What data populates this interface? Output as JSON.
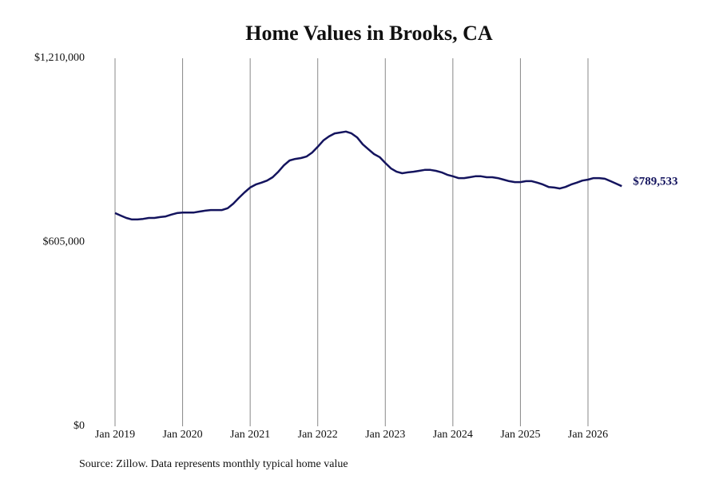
{
  "chart_data": {
    "type": "line",
    "title": "Home Values in Brooks, CA",
    "source": "Source: Zillow. Data represents monthly typical home value",
    "x": [
      "Jan 2019",
      "Feb 2019",
      "Mar 2019",
      "Apr 2019",
      "May 2019",
      "Jun 2019",
      "Jul 2019",
      "Aug 2019",
      "Sep 2019",
      "Oct 2019",
      "Nov 2019",
      "Dec 2019",
      "Jan 2020",
      "Feb 2020",
      "Mar 2020",
      "Apr 2020",
      "May 2020",
      "Jun 2020",
      "Jul 2020",
      "Aug 2020",
      "Sep 2020",
      "Oct 2020",
      "Nov 2020",
      "Dec 2020",
      "Jan 2021",
      "Feb 2021",
      "Mar 2021",
      "Apr 2021",
      "May 2021",
      "Jun 2021",
      "Jul 2021",
      "Aug 2021",
      "Sep 2021",
      "Oct 2021",
      "Nov 2021",
      "Dec 2021",
      "Jan 2022",
      "Feb 2022",
      "Mar 2022",
      "Apr 2022",
      "May 2022",
      "Jun 2022",
      "Jul 2022",
      "Aug 2022",
      "Sep 2022",
      "Oct 2022",
      "Nov 2022",
      "Dec 2022",
      "Jan 2023",
      "Feb 2023",
      "Mar 2023",
      "Apr 2023",
      "May 2023",
      "Jun 2023",
      "Jul 2023",
      "Aug 2023",
      "Sep 2023",
      "Oct 2023",
      "Nov 2023",
      "Dec 2023",
      "Jan 2024",
      "Feb 2024",
      "Mar 2024",
      "Apr 2024",
      "May 2024",
      "Jun 2024",
      "Jul 2024",
      "Aug 2024",
      "Sep 2024",
      "Oct 2024",
      "Nov 2024",
      "Dec 2024",
      "Jan 2025",
      "Feb 2025",
      "Mar 2025",
      "Apr 2025",
      "May 2025",
      "Jun 2025",
      "Jul 2025",
      "Aug 2025",
      "Sep 2025",
      "Oct 2025",
      "Nov 2025",
      "Dec 2025",
      "Jan 2026",
      "Feb 2026",
      "Mar 2026",
      "Apr 2026",
      "May 2026",
      "Jun 2026",
      "Jul 2026"
    ],
    "series": [
      {
        "name": "Home value",
        "color": "#14145e",
        "values": [
          701000,
          693000,
          685000,
          680000,
          680000,
          682000,
          685000,
          685000,
          688000,
          690000,
          696000,
          701000,
          703000,
          703000,
          703000,
          706000,
          709000,
          711000,
          711000,
          711000,
          717000,
          732000,
          751000,
          769000,
          785000,
          795000,
          801000,
          808000,
          819000,
          837000,
          858000,
          874000,
          879000,
          882000,
          887000,
          900000,
          919000,
          940000,
          953000,
          963000,
          966000,
          969000,
          963000,
          950000,
          927000,
          911000,
          895000,
          885000,
          866000,
          848000,
          837000,
          832000,
          835000,
          837000,
          840000,
          843000,
          843000,
          840000,
          835000,
          827000,
          822000,
          816000,
          816000,
          819000,
          822000,
          822000,
          819000,
          819000,
          816000,
          811000,
          806000,
          803000,
          803000,
          806000,
          806000,
          801000,
          795000,
          787000,
          785000,
          782000,
          787000,
          795000,
          801000,
          808000,
          811000,
          816000,
          816000,
          814000,
          806000,
          798000,
          789533
        ],
        "value_labels": [
          null,
          null,
          null,
          null,
          null,
          null,
          null,
          null,
          null,
          null,
          null,
          null,
          null,
          null,
          null,
          null,
          null,
          null,
          null,
          null,
          null,
          null,
          null,
          null,
          null,
          null,
          null,
          null,
          null,
          null,
          null,
          null,
          null,
          null,
          null,
          null,
          null,
          null,
          null,
          null,
          null,
          null,
          null,
          null,
          null,
          null,
          null,
          null,
          null,
          null,
          null,
          null,
          null,
          null,
          null,
          null,
          null,
          null,
          null,
          null,
          null,
          null,
          null,
          null,
          null,
          null,
          null,
          null,
          null,
          null,
          null,
          null,
          null,
          null,
          null,
          null,
          null,
          null,
          null,
          null,
          null,
          null,
          null,
          null,
          null,
          null,
          null,
          null,
          null,
          null,
          "$789,533"
        ]
      }
    ],
    "xticks": [
      "Jan 2019",
      "Jan 2020",
      "Jan 2021",
      "Jan 2022",
      "Jan 2023",
      "Jan 2024",
      "Jan 2025",
      "Jan 2026"
    ],
    "ylim": [
      0,
      1210000
    ],
    "yticks": [
      {
        "value": 0,
        "label": "$0"
      },
      {
        "value": 605000,
        "label": "$605,000"
      },
      {
        "value": 1210000,
        "label": "$1,210,000"
      }
    ],
    "grid": "x"
  }
}
